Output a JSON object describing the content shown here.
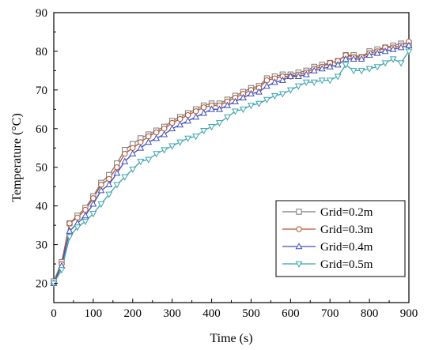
{
  "chart_data": {
    "type": "line",
    "xlabel": "Time (s)",
    "ylabel": "Temperature (°C)",
    "xlim": [
      0,
      900
    ],
    "ylim": [
      15,
      90
    ],
    "xticks": [
      0,
      100,
      200,
      300,
      400,
      500,
      600,
      700,
      800,
      900
    ],
    "yticks": [
      20,
      30,
      40,
      50,
      60,
      70,
      80,
      90
    ],
    "grid": false,
    "legend_position": "bottom-right",
    "series": [
      {
        "name": "Grid=0.2m",
        "color": "#7a7a7a",
        "marker": "square",
        "x": [
          0,
          20,
          40,
          60,
          80,
          100,
          120,
          140,
          160,
          180,
          200,
          220,
          240,
          260,
          280,
          300,
          320,
          340,
          360,
          380,
          400,
          420,
          440,
          460,
          480,
          500,
          520,
          540,
          560,
          580,
          600,
          620,
          640,
          660,
          680,
          700,
          720,
          740,
          760,
          780,
          800,
          820,
          840,
          860,
          880,
          900
        ],
        "y": [
          20.5,
          25.5,
          35.5,
          37.5,
          39.5,
          42.5,
          46.0,
          48.0,
          51.0,
          54.5,
          56.0,
          57.5,
          58.5,
          59.5,
          60.5,
          62.0,
          63.0,
          64.0,
          65.0,
          66.0,
          66.5,
          66.5,
          67.5,
          68.5,
          69.5,
          70.5,
          71.0,
          73.0,
          73.5,
          74.0,
          74.0,
          74.5,
          75.0,
          76.0,
          76.5,
          77.0,
          77.5,
          79.0,
          79.0,
          78.5,
          80.0,
          80.5,
          81.0,
          81.5,
          82.0,
          82.0
        ]
      },
      {
        "name": "Grid=0.3m",
        "color": "#b5532f",
        "marker": "circle",
        "x": [
          0,
          20,
          40,
          60,
          80,
          100,
          120,
          140,
          160,
          180,
          200,
          220,
          240,
          260,
          280,
          300,
          320,
          340,
          360,
          380,
          400,
          420,
          440,
          460,
          480,
          500,
          520,
          540,
          560,
          580,
          600,
          620,
          640,
          660,
          680,
          700,
          720,
          740,
          760,
          780,
          800,
          820,
          840,
          860,
          880,
          900
        ],
        "y": [
          20.0,
          25.0,
          35.5,
          37.0,
          39.0,
          42.0,
          45.5,
          47.0,
          50.0,
          53.5,
          55.0,
          56.5,
          58.0,
          59.0,
          60.0,
          61.5,
          62.5,
          63.5,
          64.5,
          65.5,
          66.0,
          66.0,
          67.0,
          68.0,
          69.0,
          70.0,
          70.5,
          72.5,
          73.0,
          73.5,
          73.5,
          74.0,
          74.5,
          75.5,
          76.0,
          77.0,
          77.5,
          79.0,
          78.5,
          78.5,
          79.5,
          80.0,
          81.0,
          81.0,
          81.5,
          82.5
        ]
      },
      {
        "name": "Grid=0.4m",
        "color": "#3f4fbf",
        "marker": "triangle-up",
        "x": [
          0,
          20,
          40,
          60,
          80,
          100,
          120,
          140,
          160,
          180,
          200,
          220,
          240,
          260,
          280,
          300,
          320,
          340,
          360,
          380,
          400,
          420,
          440,
          460,
          480,
          500,
          520,
          540,
          560,
          580,
          600,
          620,
          640,
          660,
          680,
          700,
          720,
          740,
          760,
          780,
          800,
          820,
          840,
          860,
          880,
          900
        ],
        "y": [
          20.0,
          24.5,
          33.5,
          35.5,
          37.5,
          40.5,
          44.0,
          45.5,
          48.5,
          51.5,
          53.5,
          55.0,
          56.5,
          57.5,
          58.5,
          60.0,
          61.0,
          62.0,
          63.0,
          64.0,
          65.0,
          65.0,
          66.0,
          67.0,
          68.0,
          69.0,
          69.5,
          71.0,
          72.0,
          72.5,
          73.5,
          73.5,
          74.0,
          75.0,
          75.5,
          76.0,
          76.5,
          78.0,
          78.0,
          78.0,
          79.0,
          79.5,
          80.0,
          80.5,
          81.0,
          81.5
        ]
      },
      {
        "name": "Grid=0.5m",
        "color": "#3aa4ad",
        "marker": "triangle-down",
        "x": [
          0,
          20,
          40,
          60,
          80,
          100,
          120,
          140,
          160,
          180,
          200,
          220,
          240,
          260,
          280,
          300,
          320,
          340,
          360,
          380,
          400,
          420,
          440,
          460,
          480,
          500,
          520,
          540,
          560,
          580,
          600,
          620,
          640,
          660,
          680,
          700,
          720,
          740,
          760,
          780,
          800,
          820,
          840,
          860,
          880,
          900
        ],
        "y": [
          20.0,
          23.5,
          32.0,
          34.5,
          36.0,
          38.0,
          40.5,
          43.0,
          45.5,
          47.5,
          49.5,
          51.5,
          52.0,
          53.5,
          54.5,
          55.5,
          56.5,
          57.5,
          58.0,
          59.5,
          60.5,
          61.5,
          63.0,
          64.5,
          65.0,
          66.0,
          66.5,
          67.5,
          68.5,
          69.0,
          70.0,
          71.0,
          72.0,
          72.0,
          72.5,
          72.5,
          73.5,
          76.5,
          75.0,
          75.0,
          75.5,
          76.0,
          77.0,
          78.0,
          77.0,
          80.0
        ]
      }
    ]
  }
}
